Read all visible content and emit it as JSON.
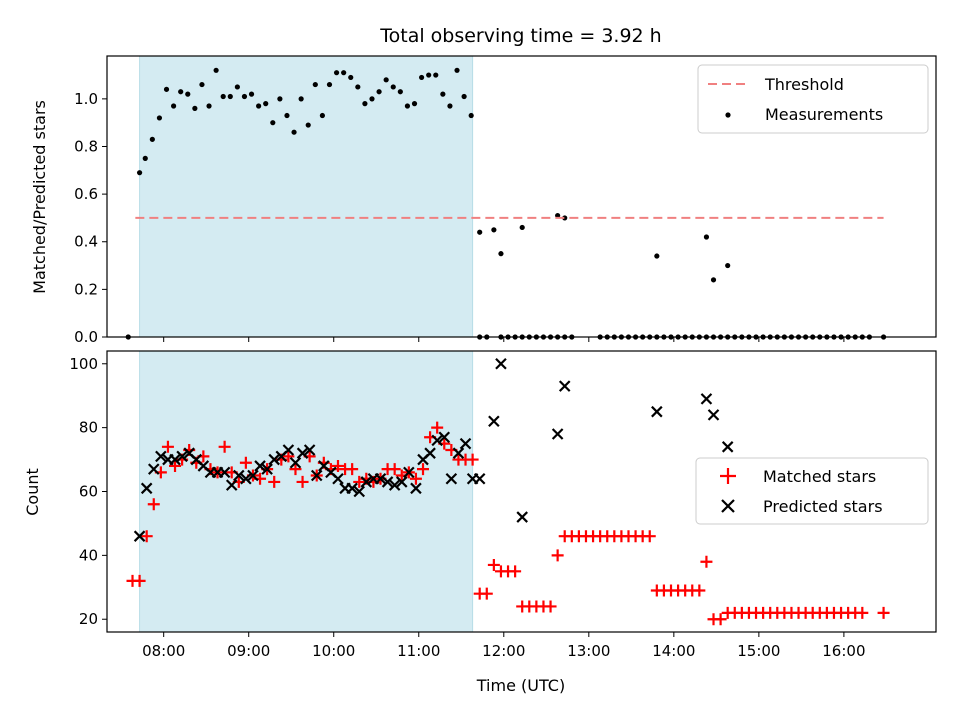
{
  "chart_data": [
    {
      "type": "scatter",
      "title": "Total observing time = 3.92 h",
      "ylabel": "Matched/Predicted stars",
      "xlabel": "",
      "xlim": [
        "07:20",
        "17:05"
      ],
      "ylim": [
        0,
        1.18
      ],
      "yticks": [
        "0.0",
        "0.2",
        "0.4",
        "0.6",
        "0.8",
        "1.0"
      ],
      "ytick_values": [
        0,
        0.2,
        0.4,
        0.6,
        0.8,
        1.0
      ],
      "shaded_span": [
        "07:43",
        "11:38"
      ],
      "shade_color": "#d4ebf2",
      "threshold": {
        "name": "Threshold",
        "value": 0.5,
        "x": [
          "07:40",
          "16:28"
        ],
        "color": "#f08080"
      },
      "legend_position": "top-right",
      "series": [
        {
          "name": "Measurements",
          "color": "#000000",
          "marker": "dot",
          "x": [
            "07:35",
            "07:43",
            "07:47",
            "07:52",
            "07:57",
            "08:02",
            "08:07",
            "08:12",
            "08:17",
            "08:22",
            "08:27",
            "08:32",
            "08:37",
            "08:42",
            "08:47",
            "08:52",
            "08:57",
            "09:02",
            "09:07",
            "09:12",
            "09:17",
            "09:22",
            "09:27",
            "09:32",
            "09:37",
            "09:42",
            "09:47",
            "09:52",
            "09:57",
            "10:02",
            "10:07",
            "10:12",
            "10:17",
            "10:22",
            "10:27",
            "10:32",
            "10:37",
            "10:42",
            "10:47",
            "10:52",
            "10:57",
            "11:02",
            "11:07",
            "11:12",
            "11:17",
            "11:22",
            "11:27",
            "11:32",
            "11:37",
            "11:43",
            "11:48",
            "11:58",
            "12:03",
            "12:08",
            "12:13",
            "12:18",
            "12:23",
            "12:28",
            "12:33",
            "12:38",
            "12:43",
            "12:48",
            "13:08",
            "13:13",
            "13:18",
            "13:23",
            "13:28",
            "13:33",
            "13:38",
            "13:43",
            "13:48",
            "13:53",
            "13:58",
            "14:03",
            "14:08",
            "14:13",
            "14:18",
            "14:23",
            "14:28",
            "14:33",
            "14:38",
            "14:43",
            "14:48",
            "14:53",
            "14:58",
            "15:03",
            "15:08",
            "15:13",
            "15:18",
            "15:23",
            "15:28",
            "15:33",
            "15:38",
            "15:43",
            "15:48",
            "15:53",
            "15:58",
            "16:03",
            "16:08",
            "16:13",
            "16:18",
            "16:28",
            "11:43",
            "11:53",
            "11:58",
            "12:13",
            "12:38",
            "12:43",
            "13:48",
            "14:23",
            "14:28",
            "14:38"
          ],
          "y": [
            0,
            0.69,
            0.75,
            0.83,
            0.92,
            1.04,
            0.97,
            1.03,
            1.02,
            0.96,
            1.06,
            0.97,
            1.12,
            1.01,
            1.01,
            1.05,
            1.01,
            1.02,
            0.97,
            0.98,
            0.9,
            1.0,
            0.93,
            0.86,
            1.0,
            0.89,
            1.06,
            0.93,
            1.06,
            1.11,
            1.11,
            1.09,
            1.05,
            0.98,
            1.0,
            1.03,
            1.08,
            1.05,
            1.03,
            0.97,
            0.98,
            1.09,
            1.1,
            1.1,
            1.02,
            0.97,
            1.12,
            1.01,
            0.93,
            0,
            0,
            0,
            0,
            0,
            0,
            0,
            0,
            0,
            0,
            0,
            0,
            0,
            0,
            0,
            0,
            0,
            0,
            0,
            0,
            0,
            0,
            0,
            0,
            0,
            0,
            0,
            0,
            0,
            0,
            0,
            0,
            0,
            0,
            0,
            0,
            0,
            0,
            0,
            0,
            0,
            0,
            0,
            0,
            0,
            0,
            0,
            0,
            0,
            0,
            0,
            0,
            0,
            0.44,
            0.45,
            0.35,
            0.46,
            0.51,
            0.5,
            0.34,
            0.42,
            0.24,
            0.3
          ]
        }
      ]
    },
    {
      "type": "scatter",
      "title": "",
      "xlabel": "Time (UTC)",
      "ylabel": "Count",
      "xlim": [
        "07:20",
        "17:05"
      ],
      "ylim": [
        16,
        104
      ],
      "xticks": [
        "08:00",
        "09:00",
        "10:00",
        "11:00",
        "12:00",
        "13:00",
        "14:00",
        "15:00",
        "16:00"
      ],
      "yticks": [
        "20",
        "40",
        "60",
        "80",
        "100"
      ],
      "ytick_values": [
        20,
        40,
        60,
        80,
        100
      ],
      "shaded_span": [
        "07:43",
        "11:38"
      ],
      "shade_color": "#d4ebf2",
      "legend_position": "center-right",
      "series": [
        {
          "name": "Matched stars",
          "color": "#ff0000",
          "marker": "plus",
          "x": [
            "07:38",
            "07:43",
            "07:48",
            "07:53",
            "07:58",
            "08:03",
            "08:08",
            "08:13",
            "08:18",
            "08:23",
            "08:28",
            "08:33",
            "08:38",
            "08:43",
            "08:48",
            "08:53",
            "08:58",
            "09:03",
            "09:08",
            "09:13",
            "09:18",
            "09:23",
            "09:28",
            "09:33",
            "09:38",
            "09:43",
            "09:48",
            "09:53",
            "09:58",
            "10:03",
            "10:08",
            "10:13",
            "10:18",
            "10:23",
            "10:28",
            "10:33",
            "10:38",
            "10:43",
            "10:48",
            "10:53",
            "10:58",
            "11:03",
            "11:08",
            "11:13",
            "11:18",
            "11:23",
            "11:28",
            "11:33",
            "11:38",
            "11:43",
            "11:48",
            "11:53",
            "11:58",
            "12:03",
            "12:08",
            "12:13",
            "12:18",
            "12:23",
            "12:28",
            "12:33",
            "12:38",
            "12:43",
            "12:48",
            "12:53",
            "12:58",
            "13:03",
            "13:08",
            "13:13",
            "13:18",
            "13:23",
            "13:28",
            "13:33",
            "13:38",
            "13:43",
            "13:48",
            "13:53",
            "13:58",
            "14:03",
            "14:08",
            "14:13",
            "14:18",
            "14:23",
            "14:28",
            "14:33",
            "14:38",
            "14:43",
            "14:48",
            "14:53",
            "14:58",
            "15:03",
            "15:08",
            "15:13",
            "15:18",
            "15:23",
            "15:28",
            "15:33",
            "15:38",
            "15:43",
            "15:48",
            "15:53",
            "15:58",
            "16:03",
            "16:08",
            "16:13",
            "16:28"
          ],
          "y": [
            32,
            32,
            46,
            56,
            66,
            74,
            68,
            70,
            73,
            69,
            71,
            67,
            66,
            74,
            66,
            63,
            69,
            65,
            64,
            67,
            63,
            70,
            71,
            67,
            63,
            71,
            65,
            69,
            67,
            68,
            67,
            67,
            63,
            64,
            63,
            64,
            67,
            67,
            65,
            66,
            64,
            67,
            77,
            80,
            75,
            73,
            70,
            70,
            70,
            28,
            28,
            37,
            35,
            35,
            35,
            24,
            24,
            24,
            24,
            24,
            40,
            46,
            46,
            46,
            46,
            46,
            46,
            46,
            46,
            46,
            46,
            46,
            46,
            46,
            29,
            29,
            29,
            29,
            29,
            29,
            29,
            38,
            20,
            20,
            22,
            22,
            22,
            22,
            22,
            22,
            22,
            22,
            22,
            22,
            22,
            22,
            22,
            22,
            22,
            22,
            22,
            22,
            22,
            22,
            22
          ]
        },
        {
          "name": "Predicted stars",
          "color": "#000000",
          "marker": "x",
          "x": [
            "07:43",
            "07:48",
            "07:53",
            "07:58",
            "08:03",
            "08:08",
            "08:13",
            "08:18",
            "08:23",
            "08:28",
            "08:33",
            "08:38",
            "08:43",
            "08:48",
            "08:53",
            "08:58",
            "09:03",
            "09:08",
            "09:13",
            "09:18",
            "09:23",
            "09:28",
            "09:33",
            "09:38",
            "09:43",
            "09:48",
            "09:53",
            "09:58",
            "10:03",
            "10:08",
            "10:13",
            "10:18",
            "10:23",
            "10:28",
            "10:33",
            "10:38",
            "10:43",
            "10:48",
            "10:53",
            "10:58",
            "11:03",
            "11:08",
            "11:13",
            "11:18",
            "11:23",
            "11:28",
            "11:33",
            "11:38",
            "11:43",
            "11:53",
            "11:58",
            "12:13",
            "12:38",
            "12:43",
            "13:48",
            "14:23",
            "14:28",
            "14:38"
          ],
          "y": [
            46,
            61,
            67,
            71,
            70,
            70,
            71,
            72,
            70,
            68,
            66,
            66,
            66,
            62,
            65,
            64,
            65,
            68,
            67,
            70,
            71,
            73,
            69,
            72,
            73,
            65,
            68,
            66,
            64,
            61,
            61,
            60,
            63,
            64,
            64,
            63,
            62,
            63,
            66,
            61,
            70,
            72,
            76,
            77,
            64,
            72,
            75,
            64,
            64,
            82,
            100,
            52,
            78,
            93,
            85,
            89,
            84,
            74
          ]
        }
      ]
    }
  ]
}
